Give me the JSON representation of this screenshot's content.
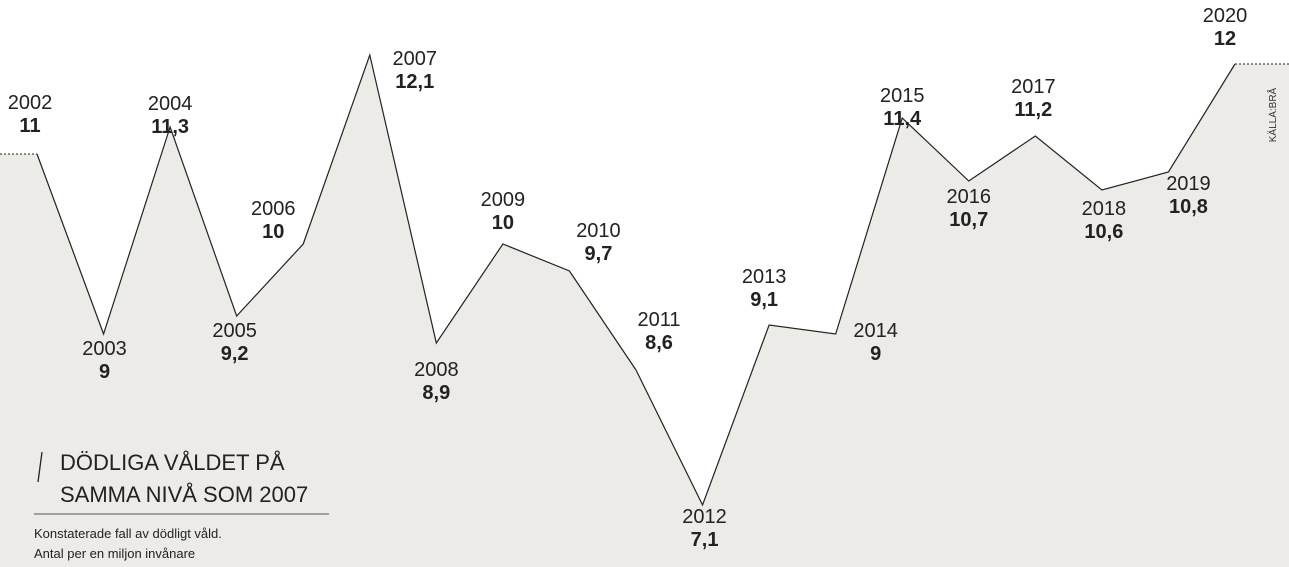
{
  "chart_data": {
    "type": "line",
    "title": [
      "DÖDLIGA VÅLDET PÅ",
      "SAMMA NIVÅ SOM 2007"
    ],
    "subtitle": [
      "Konstaterade fall av dödligt våld.",
      "Antal per en miljon invånare"
    ],
    "source": "KÄLLA:BRÅ",
    "x": [
      2002,
      2003,
      2004,
      2005,
      2006,
      2007,
      2008,
      2009,
      2010,
      2011,
      2012,
      2013,
      2014,
      2015,
      2016,
      2017,
      2018,
      2019,
      2020
    ],
    "values": [
      11,
      9,
      11.3,
      9.2,
      10,
      12.1,
      8.9,
      10,
      9.7,
      8.6,
      7.1,
      9.1,
      9,
      11.4,
      10.7,
      11.2,
      10.6,
      10.8,
      12
    ],
    "value_labels": [
      "11",
      "9",
      "11,3",
      "9,2",
      "10",
      "12,1",
      "8,9",
      "10",
      "9,7",
      "8,6",
      "7,1",
      "9,1",
      "9",
      "11,4",
      "10,7",
      "11,2",
      "10,6",
      "10,8",
      "12"
    ],
    "color": "#222222",
    "fill": "#ecebe7"
  }
}
